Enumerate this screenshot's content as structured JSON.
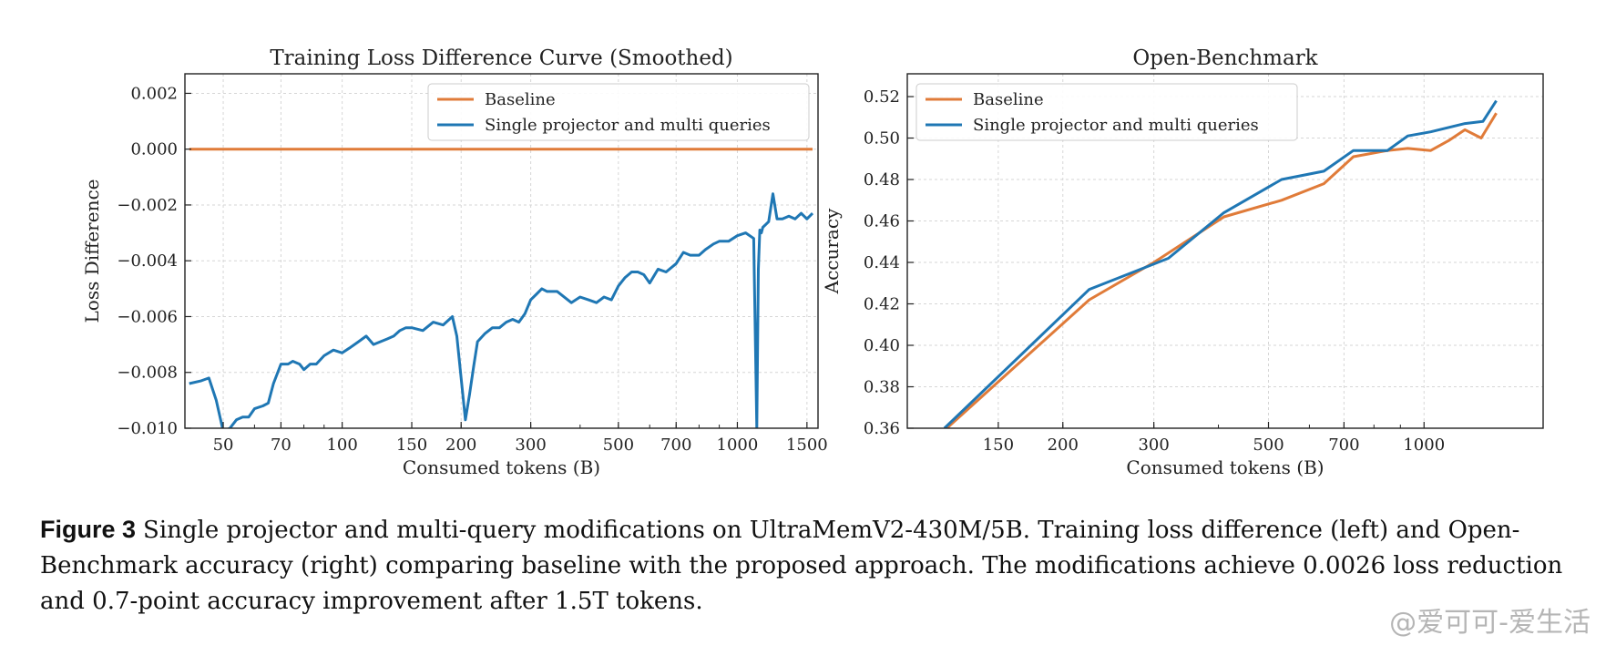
{
  "chart_data": [
    {
      "type": "line",
      "title": "Training Loss Difference Curve (Smoothed)",
      "xlabel": "Consumed tokens (B)",
      "ylabel": "Loss Difference",
      "xscale": "log",
      "xlim": [
        40,
        1600
      ],
      "ylim": [
        -0.01,
        0.0027
      ],
      "xticks": [
        50,
        70,
        100,
        150,
        200,
        300,
        500,
        700,
        1000,
        1500
      ],
      "yticks": [
        0.002,
        0.0,
        -0.002,
        -0.004,
        -0.006,
        -0.008,
        -0.01
      ],
      "ytick_labels": [
        "0.002",
        "0.000",
        "−0.002",
        "−0.004",
        "−0.006",
        "−0.008",
        "−0.010"
      ],
      "grid": true,
      "legend_position": "top-right",
      "series": [
        {
          "name": "Baseline",
          "color": "#e07b39",
          "x": [
            41,
            1550
          ],
          "y": [
            0.0,
            0.0
          ]
        },
        {
          "name": "Single projector and multi queries",
          "color": "#1f77b4",
          "x": [
            41,
            44,
            46,
            48,
            50,
            52,
            54,
            56,
            58,
            60,
            63,
            65,
            67,
            70,
            73,
            75,
            78,
            80,
            83,
            86,
            90,
            95,
            100,
            105,
            110,
            115,
            120,
            125,
            130,
            135,
            140,
            145,
            150,
            160,
            170,
            180,
            190,
            195,
            200,
            205,
            210,
            215,
            220,
            230,
            240,
            250,
            260,
            270,
            280,
            290,
            300,
            310,
            320,
            330,
            350,
            380,
            400,
            420,
            440,
            460,
            480,
            500,
            520,
            540,
            560,
            580,
            600,
            630,
            660,
            700,
            730,
            760,
            800,
            830,
            870,
            900,
            950,
            1000,
            1050,
            1100,
            1120,
            1130,
            1140,
            1150,
            1160,
            1180,
            1200,
            1230,
            1260,
            1300,
            1350,
            1400,
            1450,
            1500,
            1550
          ],
          "y": [
            -0.0084,
            -0.0083,
            -0.0082,
            -0.009,
            -0.0101,
            -0.01,
            -0.0097,
            -0.0096,
            -0.0096,
            -0.0093,
            -0.0092,
            -0.0091,
            -0.0084,
            -0.0077,
            -0.0077,
            -0.0076,
            -0.0077,
            -0.0079,
            -0.0077,
            -0.0077,
            -0.0074,
            -0.0072,
            -0.0073,
            -0.0071,
            -0.0069,
            -0.0067,
            -0.007,
            -0.0069,
            -0.0068,
            -0.0067,
            -0.0065,
            -0.0064,
            -0.0064,
            -0.0065,
            -0.0062,
            -0.0063,
            -0.006,
            -0.0067,
            -0.0082,
            -0.0097,
            -0.0088,
            -0.0078,
            -0.0069,
            -0.0066,
            -0.0064,
            -0.0064,
            -0.0062,
            -0.0061,
            -0.0062,
            -0.0059,
            -0.0054,
            -0.0052,
            -0.005,
            -0.0051,
            -0.0051,
            -0.0055,
            -0.0053,
            -0.0054,
            -0.0055,
            -0.0053,
            -0.0054,
            -0.0049,
            -0.0046,
            -0.0044,
            -0.0044,
            -0.0045,
            -0.0048,
            -0.0043,
            -0.0044,
            -0.0041,
            -0.0037,
            -0.0038,
            -0.0038,
            -0.0036,
            -0.0034,
            -0.0033,
            -0.0033,
            -0.0031,
            -0.003,
            -0.0032,
            -0.01,
            -0.0043,
            -0.0029,
            -0.003,
            -0.0028,
            -0.0027,
            -0.0026,
            -0.0016,
            -0.0025,
            -0.0025,
            -0.0024,
            -0.0025,
            -0.0023,
            -0.0025,
            -0.0023
          ]
        }
      ]
    },
    {
      "type": "line",
      "title": "Open-Benchmark",
      "xlabel": "Consumed tokens (B)",
      "ylabel": "Accuracy",
      "xscale": "log",
      "xlim": [
        100,
        1700
      ],
      "ylim": [
        0.36,
        0.531
      ],
      "xticks": [
        150,
        200,
        300,
        500,
        700,
        1000
      ],
      "yticks": [
        0.36,
        0.38,
        0.4,
        0.42,
        0.44,
        0.46,
        0.48,
        0.5,
        0.52
      ],
      "ytick_labels": [
        "0.36",
        "0.38",
        "0.40",
        "0.42",
        "0.44",
        "0.46",
        "0.48",
        "0.50",
        "0.52"
      ],
      "grid": true,
      "legend_position": "top-left",
      "series": [
        {
          "name": "Baseline",
          "color": "#e07b39",
          "x": [
            118,
            225,
            300,
            410,
            530,
            640,
            730,
            850,
            930,
            1030,
            1120,
            1200,
            1290,
            1380
          ],
          "y": [
            0.359,
            0.422,
            0.44,
            0.462,
            0.47,
            0.478,
            0.491,
            0.494,
            0.495,
            0.494,
            0.499,
            0.504,
            0.5,
            0.512
          ]
        },
        {
          "name": "Single projector and multi queries",
          "color": "#1f77b4",
          "x": [
            118,
            225,
            320,
            410,
            530,
            640,
            730,
            850,
            930,
            1030,
            1200,
            1300,
            1380
          ],
          "y": [
            0.36,
            0.427,
            0.442,
            0.464,
            0.48,
            0.484,
            0.494,
            0.494,
            0.501,
            0.503,
            0.507,
            0.508,
            0.518
          ]
        }
      ]
    }
  ],
  "caption": {
    "label": "Figure 3",
    "text": "Single projector and multi-query modifications on UltraMemV2-430M/5B. Training loss difference (left) and Open-Benchmark accuracy (right) comparing baseline with the proposed approach. The modifications achieve 0.0026 loss reduction and 0.7-point accuracy improvement after 1.5T tokens."
  },
  "watermark": "@爱可可-爱生活"
}
